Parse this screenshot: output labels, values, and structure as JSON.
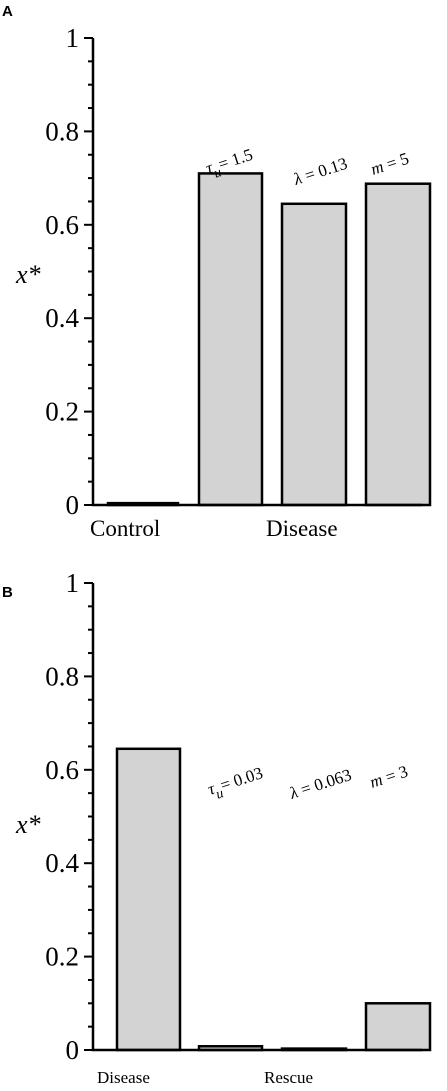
{
  "chart_data": [
    {
      "panel": "A",
      "type": "bar",
      "ylabel": "x*",
      "ylim": [
        0,
        1
      ],
      "yticks": [
        0,
        0.2,
        0.4,
        0.6,
        0.8,
        1
      ],
      "ytick_labels": [
        "0",
        "0.2",
        "0.4",
        "0.6",
        "0.8",
        "1"
      ],
      "values": [
        0.004,
        0.71,
        0.645,
        0.688
      ],
      "annotations": [
        {
          "var": "",
          "text": ""
        },
        {
          "var": "τ",
          "sub": "u",
          "text": "= 1.5"
        },
        {
          "var": "λ",
          "sub": "",
          "text": " = 0.13"
        },
        {
          "var": "m",
          "sub": "",
          "text": " = 5"
        }
      ],
      "group_labels": [
        "Control",
        "Disease"
      ]
    },
    {
      "panel": "B",
      "type": "bar",
      "ylabel": "x*",
      "ylim": [
        0,
        1
      ],
      "yticks": [
        0,
        0.2,
        0.4,
        0.6,
        0.8,
        1
      ],
      "ytick_labels": [
        "0",
        "0.2",
        "0.4",
        "0.6",
        "0.8",
        "1"
      ],
      "values": [
        0.645,
        0.008,
        0.003,
        0.1
      ],
      "annotations": [
        {
          "var": "",
          "text": ""
        },
        {
          "var": "τ",
          "sub": "u",
          "text": "= 0.03"
        },
        {
          "var": "λ",
          "sub": "",
          "text": " = 0.063"
        },
        {
          "var": "m",
          "sub": "",
          "text": " = 3"
        }
      ],
      "group_labels": [
        "Disease",
        "Rescue"
      ]
    }
  ]
}
